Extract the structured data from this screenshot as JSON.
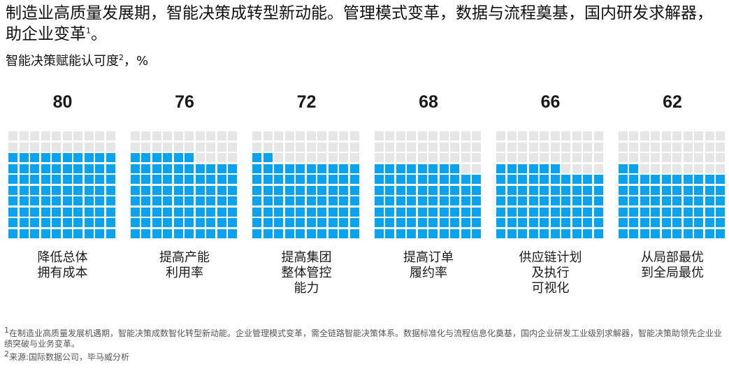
{
  "title": "制造业高质量发展期，智能决策成转型新动能。管理模式变革，数据与流程奠基，国内研发求解器，助企业变革",
  "title_sup": "1",
  "title_end": "。",
  "subtitle": "智能决策赋能认可度",
  "subtitle_sup": "2",
  "subtitle_unit": "，%",
  "colors": {
    "filled": "#0aa3ef",
    "empty": "#e6e6e6"
  },
  "chart_data": {
    "type": "waffle",
    "unit": "%",
    "grid": "10x10",
    "categories": [
      "降低总体\n拥有成本",
      "提高产能\n利用率",
      "提高集团\n整体管控\n能力",
      "提高订单\n履约率",
      "供应链计划\n及执行\n可视化",
      "从局部最优\n到全局最优"
    ],
    "values": [
      80,
      76,
      72,
      68,
      66,
      62
    ]
  },
  "footnotes": {
    "fn1_mark": "1",
    "fn1": "在制造业高质量发展机遇期，智能决策成数智化转型新动能。企业管理模式变革，需全链路智能决策体系。数据标准化与流程信息化奠基，国内企业研发工业级别求解器，智能决策助领先企业业绩突破与业务变革。",
    "fn2_mark": "2",
    "fn2": "来源:国际数据公司，毕马威分析"
  }
}
